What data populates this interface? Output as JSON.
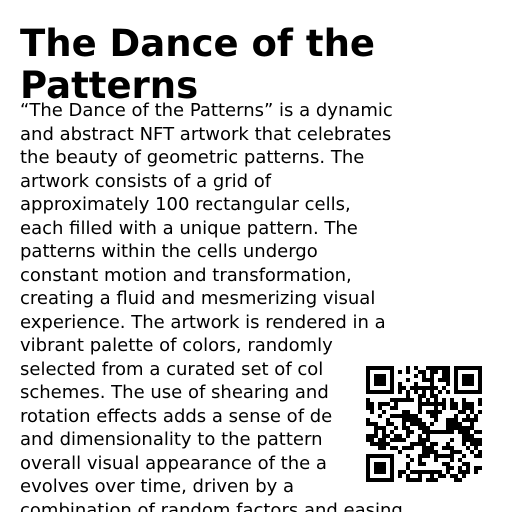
{
  "document": {
    "title": "The Dance of the Patterns",
    "description_lines": [
      "“The Dance of the Patterns” is a dynamic",
      "and abstract NFT artwork that celebrates",
      "the beauty of geometric patterns. The",
      "artwork consists of a grid of",
      "approximately 100 rectangular cells,",
      "each filled with a unique pattern. The",
      "patterns within the cells undergo",
      "constant motion and transformation,",
      "creating a fluid and mesmerizing visual",
      "experience. The artwork is rendered in a",
      "vibrant palette of colors, randomly",
      "selected from a curated set of col",
      "schemes. The use of shearing and",
      "rotation effects adds a sense of de",
      "and dimensionality to the pattern",
      "overall visual appearance of the a",
      "evolves over time, driven by a",
      "combination of random factors and easing"
    ]
  },
  "qr_code": {
    "icon": "qr-code-icon",
    "color": "#000000"
  }
}
